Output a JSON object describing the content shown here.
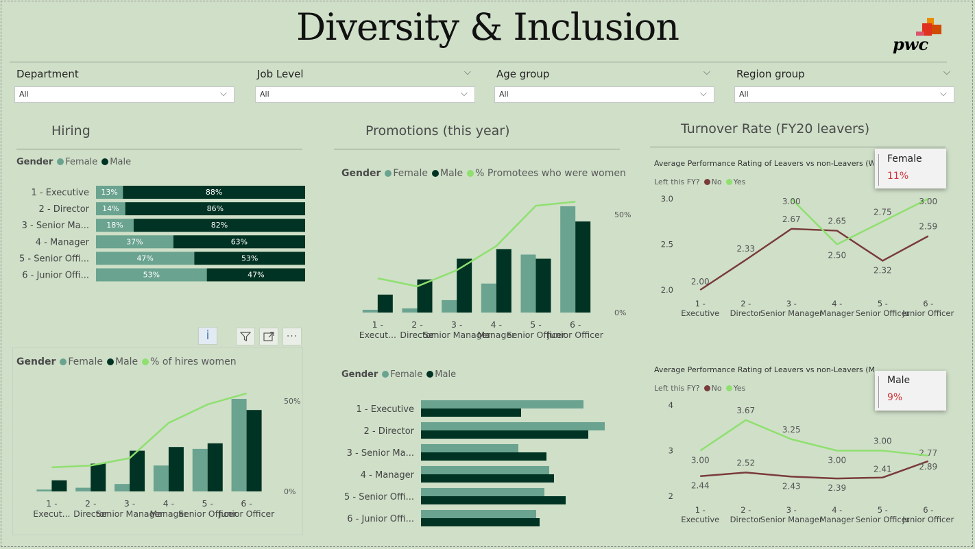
{
  "header": {
    "title": "Diversity & Inclusion",
    "logo_text": "pwc"
  },
  "slicers": [
    {
      "label": "Department",
      "value": "All"
    },
    {
      "label": "Job Level",
      "value": "All"
    },
    {
      "label": "Age group",
      "value": "All"
    },
    {
      "label": "Region group",
      "value": "All"
    }
  ],
  "colors": {
    "female": "#6aa390",
    "male": "#003323",
    "pct_line": "#8fe06f",
    "leaver_no": "#7a3b3b",
    "leaver_yes": "#8fe06f",
    "tooltip_value": "#d13438"
  },
  "sections": {
    "hiring": "Hiring",
    "promotions": "Promotions (this year)",
    "turnover": "Turnover Rate (FY20 leavers)"
  },
  "legends": {
    "gender": "Gender",
    "female": "Female",
    "male": "Male",
    "pct_promotees": "% Promotees who were women",
    "pct_hires": "% of hires women",
    "left_fy": "Left this FY?",
    "no": "No",
    "yes": "Yes"
  },
  "visual_header_icons": [
    "info-icon",
    "filter-icon",
    "focus-mode-icon",
    "more-options-icon"
  ],
  "tooltips": {
    "female": {
      "label": "Female",
      "value": "11%"
    },
    "male": {
      "label": "Male",
      "value": "9%"
    }
  },
  "chart_data": [
    {
      "id": "hiring-stacked",
      "type": "bar",
      "orientation": "horizontal-100%-stacked",
      "categories": [
        "1 - Executive",
        "2 - Director",
        "3 - Senior Ma...",
        "4 - Manager",
        "5 - Senior Offi...",
        "6 - Junior Offi..."
      ],
      "series": [
        {
          "name": "Female",
          "values": [
            13,
            14,
            18,
            37,
            47,
            53
          ],
          "labels": [
            "13%",
            "14%",
            "18%",
            "37%",
            "47%",
            "53%"
          ]
        },
        {
          "name": "Male",
          "values": [
            88,
            86,
            82,
            63,
            53,
            47
          ],
          "labels": [
            "88%",
            "86%",
            "82%",
            "63%",
            "53%",
            "47%"
          ]
        }
      ]
    },
    {
      "id": "hiring-combo",
      "type": "bar",
      "categories": [
        "1 - Execut...",
        "2 - Director",
        "3 - Senior Manager",
        "4 - Manager",
        "5 - Senior Officer",
        "6 - Junior Officer"
      ],
      "series": [
        {
          "name": "Female",
          "values": [
            1,
            2,
            4,
            14,
            23,
            50
          ]
        },
        {
          "name": "Male",
          "values": [
            6,
            15,
            22,
            24,
            26,
            44
          ]
        },
        {
          "name": "% of hires women",
          "values": [
            13,
            14,
            18,
            37,
            47,
            53
          ]
        }
      ],
      "y_right_ticks": [
        "0%",
        "50%"
      ]
    },
    {
      "id": "promotions-combo",
      "type": "bar",
      "categories": [
        "1 - Execut...",
        "2 - Director",
        "3 - Senior Manager",
        "4 - Manager",
        "5 - Senior Officer",
        "6 - Junior Officer"
      ],
      "series": [
        {
          "name": "Female",
          "values": [
            2,
            3,
            9,
            21,
            42,
            77
          ]
        },
        {
          "name": "Male",
          "values": [
            13,
            24,
            39,
            46,
            39,
            66
          ]
        },
        {
          "name": "% Promotees who were women",
          "values": [
            17,
            13,
            21,
            33,
            53,
            55
          ]
        }
      ],
      "y_right_ticks": [
        "0%",
        "50%"
      ]
    },
    {
      "id": "promotions-horizontal",
      "type": "bar",
      "orientation": "horizontal",
      "categories": [
        "1 - Executive",
        "2 - Director",
        "3 - Senior Ma...",
        "4 - Manager",
        "5 - Senior Offi...",
        "6 - Junior Offi..."
      ],
      "series": [
        {
          "name": "Female",
          "values": [
            237,
            268,
            142,
            187,
            180,
            168
          ]
        },
        {
          "name": "Male",
          "values": [
            146,
            244,
            183,
            194,
            211,
            173
          ]
        }
      ]
    },
    {
      "id": "turnover-women",
      "type": "line",
      "title": "Average Performance Rating of Leavers vs non-Leavers (WOMEN)",
      "categories": [
        "1 - Executive",
        "2 - Director",
        "3 - Senior Manager",
        "4 - Manager",
        "5 - Senior Officer",
        "6 - Junior Officer"
      ],
      "series": [
        {
          "name": "No",
          "values": [
            2.0,
            2.33,
            2.67,
            2.65,
            2.32,
            2.59
          ]
        },
        {
          "name": "Yes",
          "values": [
            null,
            null,
            3.0,
            2.5,
            2.75,
            3.0
          ]
        }
      ],
      "value_labels": {
        "No": [
          "2.00",
          "2.33",
          "2.67",
          "2.65",
          "2.32",
          "2.59"
        ],
        "Yes": [
          "",
          "",
          "3.00",
          "2.50",
          "2.75",
          "3.00"
        ]
      },
      "ylim": [
        2.0,
        3.0
      ],
      "y_ticks": [
        "2.0",
        "2.5",
        "3.0"
      ]
    },
    {
      "id": "turnover-men",
      "type": "line",
      "title": "Average Performance Rating of Leavers vs non-Leavers (MEN)",
      "categories": [
        "1 - Executive",
        "2 - Director",
        "3 - Senior Manager",
        "4 - Manager",
        "5 - Senior Officer",
        "6 - Junior Officer"
      ],
      "series": [
        {
          "name": "No",
          "values": [
            2.44,
            2.52,
            2.43,
            2.39,
            2.41,
            2.77
          ]
        },
        {
          "name": "Yes",
          "values": [
            3.0,
            3.67,
            3.25,
            3.0,
            3.0,
            2.89
          ]
        }
      ],
      "value_labels": {
        "No": [
          "2.44",
          "2.52",
          "2.43",
          "2.39",
          "2.41",
          "2.77"
        ],
        "Yes": [
          "3.00",
          "3.67",
          "3.25",
          "3.00",
          "3.00",
          "2.89"
        ]
      },
      "ylim": [
        2,
        4
      ],
      "y_ticks": [
        "2",
        "3",
        "4"
      ]
    }
  ]
}
